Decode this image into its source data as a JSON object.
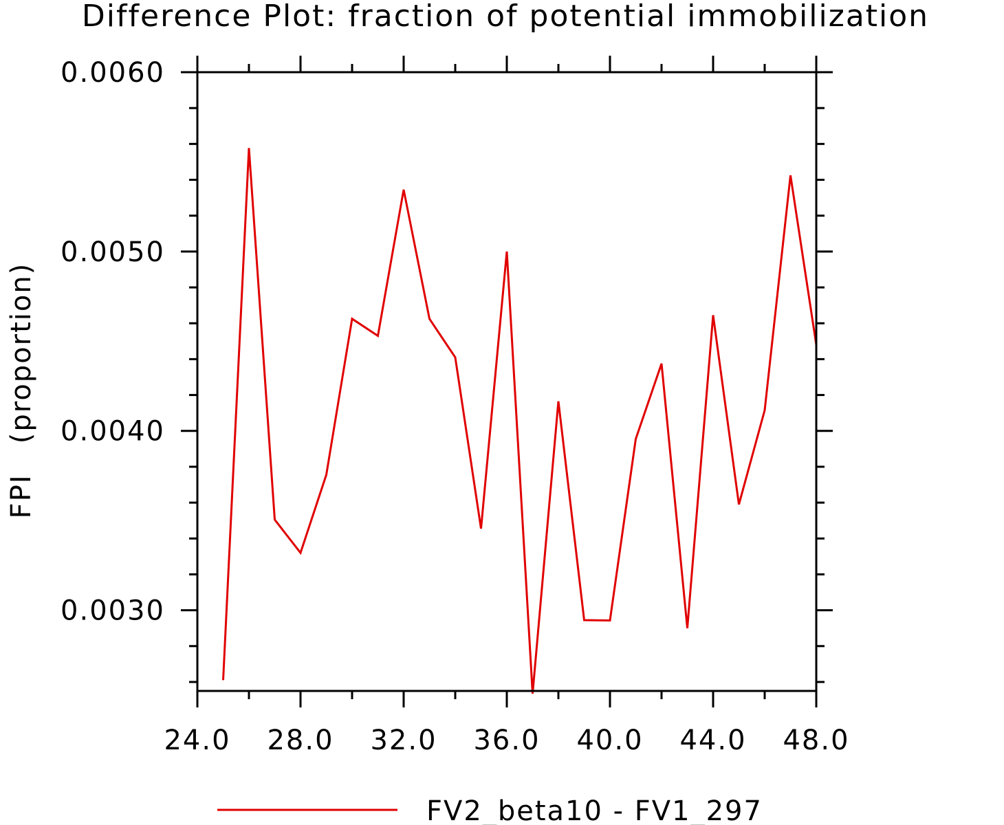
{
  "chart_data": {
    "type": "line",
    "title": "Difference Plot: fraction of potential immobilization",
    "xlabel": "",
    "ylabel": "FPI   (proportion)",
    "xlim": [
      24,
      48
    ],
    "ylim": [
      0.00255,
      0.006
    ],
    "x_ticks": [
      "24.0",
      "28.0",
      "32.0",
      "36.0",
      "40.0",
      "44.0",
      "48.0"
    ],
    "y_ticks": [
      "0.0030",
      "0.0040",
      "0.0050",
      "0.0060"
    ],
    "grid": false,
    "legend_position": "bottom",
    "series": [
      {
        "name": "FV2_beta10 - FV1_297",
        "color": "#e00000",
        "x": [
          25,
          26,
          27,
          28,
          29,
          30,
          31,
          32,
          33,
          34,
          35,
          36,
          37,
          38,
          39,
          40,
          41,
          42,
          43,
          44,
          45,
          46,
          47,
          48
        ],
        "values": [
          0.00261,
          0.005577,
          0.003505,
          0.00332,
          0.003755,
          0.004625,
          0.00453,
          0.005345,
          0.004625,
          0.00441,
          0.003455,
          0.005,
          0.002535,
          0.004165,
          0.002945,
          0.002943,
          0.003955,
          0.004375,
          0.0029,
          0.004645,
          0.00359,
          0.004115,
          0.005425,
          0.00448
        ]
      }
    ]
  }
}
